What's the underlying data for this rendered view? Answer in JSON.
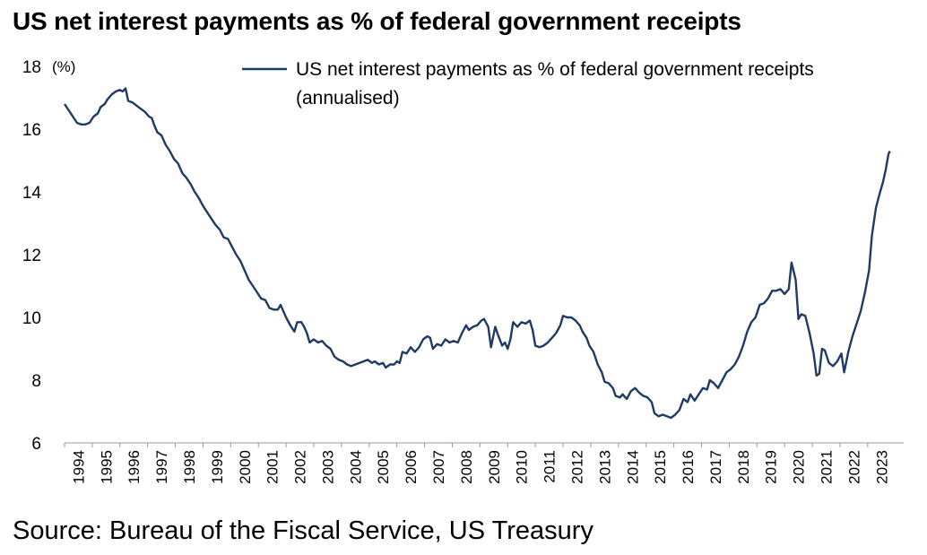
{
  "header": {
    "title": "US net interest payments as % of federal government receipts"
  },
  "footer": {
    "source": "Source: Bureau of the Fiscal Service, US Treasury"
  },
  "chart_data": {
    "type": "line",
    "title": "US net interest payments as % of federal government receipts",
    "y_unit_label": "(%)",
    "ylim": [
      6,
      18
    ],
    "yticks": [
      6,
      8,
      10,
      12,
      14,
      16,
      18
    ],
    "xlim": [
      1994.0,
      2024.3
    ],
    "xticks": [
      "1994",
      "1995",
      "1996",
      "1997",
      "1998",
      "1999",
      "2000",
      "2001",
      "2002",
      "2003",
      "2004",
      "2005",
      "2006",
      "2007",
      "2008",
      "2009",
      "2010",
      "2011",
      "2012",
      "2013",
      "2014",
      "2015",
      "2016",
      "2017",
      "2018",
      "2019",
      "2020",
      "2021",
      "2022",
      "2023"
    ],
    "grid": false,
    "legend": {
      "position": "top-right",
      "lines": [
        "US net interest payments as % of federal government receipts",
        "(annualised)"
      ]
    },
    "series": [
      {
        "name": "US net interest payments as % of federal government receipts (annualised)",
        "color": "#1f3b63",
        "points": [
          [
            1994.0,
            16.8
          ],
          [
            1994.15,
            16.6
          ],
          [
            1994.3,
            16.4
          ],
          [
            1994.45,
            16.2
          ],
          [
            1994.6,
            16.15
          ],
          [
            1994.75,
            16.15
          ],
          [
            1994.9,
            16.2
          ],
          [
            1995.05,
            16.4
          ],
          [
            1995.2,
            16.5
          ],
          [
            1995.3,
            16.7
          ],
          [
            1995.45,
            16.8
          ],
          [
            1995.55,
            16.95
          ],
          [
            1995.7,
            17.1
          ],
          [
            1995.85,
            17.2
          ],
          [
            1996.0,
            17.25
          ],
          [
            1996.1,
            17.2
          ],
          [
            1996.2,
            17.3
          ],
          [
            1996.3,
            16.9
          ],
          [
            1996.45,
            16.85
          ],
          [
            1996.6,
            16.75
          ],
          [
            1996.75,
            16.65
          ],
          [
            1996.9,
            16.55
          ],
          [
            1997.05,
            16.4
          ],
          [
            1997.15,
            16.35
          ],
          [
            1997.25,
            16.1
          ],
          [
            1997.35,
            15.9
          ],
          [
            1997.5,
            15.8
          ],
          [
            1997.65,
            15.5
          ],
          [
            1997.8,
            15.3
          ],
          [
            1997.95,
            15.05
          ],
          [
            1998.1,
            14.9
          ],
          [
            1998.25,
            14.6
          ],
          [
            1998.4,
            14.45
          ],
          [
            1998.55,
            14.25
          ],
          [
            1998.7,
            14.0
          ],
          [
            1998.85,
            13.8
          ],
          [
            1999.0,
            13.55
          ],
          [
            1999.15,
            13.35
          ],
          [
            1999.3,
            13.15
          ],
          [
            1999.45,
            12.95
          ],
          [
            1999.6,
            12.8
          ],
          [
            1999.75,
            12.55
          ],
          [
            1999.9,
            12.5
          ],
          [
            2000.05,
            12.25
          ],
          [
            2000.2,
            12.0
          ],
          [
            2000.35,
            11.8
          ],
          [
            2000.5,
            11.5
          ],
          [
            2000.65,
            11.2
          ],
          [
            2000.8,
            11.0
          ],
          [
            2000.95,
            10.8
          ],
          [
            2001.1,
            10.6
          ],
          [
            2001.25,
            10.55
          ],
          [
            2001.4,
            10.3
          ],
          [
            2001.55,
            10.25
          ],
          [
            2001.7,
            10.25
          ],
          [
            2001.8,
            10.4
          ],
          [
            2001.9,
            10.2
          ],
          [
            2002.0,
            10.0
          ],
          [
            2002.15,
            9.75
          ],
          [
            2002.3,
            9.55
          ],
          [
            2002.4,
            9.85
          ],
          [
            2002.55,
            9.85
          ],
          [
            2002.65,
            9.7
          ],
          [
            2002.75,
            9.5
          ],
          [
            2002.85,
            9.2
          ],
          [
            2003.0,
            9.3
          ],
          [
            2003.15,
            9.2
          ],
          [
            2003.3,
            9.25
          ],
          [
            2003.45,
            9.1
          ],
          [
            2003.6,
            9.0
          ],
          [
            2003.75,
            8.75
          ],
          [
            2003.9,
            8.65
          ],
          [
            2004.05,
            8.6
          ],
          [
            2004.2,
            8.5
          ],
          [
            2004.35,
            8.45
          ],
          [
            2004.5,
            8.5
          ],
          [
            2004.65,
            8.55
          ],
          [
            2004.8,
            8.6
          ],
          [
            2004.95,
            8.65
          ],
          [
            2005.1,
            8.55
          ],
          [
            2005.2,
            8.6
          ],
          [
            2005.35,
            8.5
          ],
          [
            2005.5,
            8.55
          ],
          [
            2005.6,
            8.4
          ],
          [
            2005.75,
            8.5
          ],
          [
            2005.9,
            8.5
          ],
          [
            2006.0,
            8.6
          ],
          [
            2006.1,
            8.55
          ],
          [
            2006.2,
            8.9
          ],
          [
            2006.35,
            8.85
          ],
          [
            2006.5,
            9.05
          ],
          [
            2006.65,
            8.9
          ],
          [
            2006.8,
            9.05
          ],
          [
            2006.95,
            9.3
          ],
          [
            2007.1,
            9.4
          ],
          [
            2007.2,
            9.35
          ],
          [
            2007.3,
            9.0
          ],
          [
            2007.45,
            9.15
          ],
          [
            2007.6,
            9.1
          ],
          [
            2007.75,
            9.3
          ],
          [
            2007.9,
            9.2
          ],
          [
            2008.05,
            9.25
          ],
          [
            2008.2,
            9.2
          ],
          [
            2008.35,
            9.5
          ],
          [
            2008.5,
            9.75
          ],
          [
            2008.6,
            9.6
          ],
          [
            2008.75,
            9.7
          ],
          [
            2008.9,
            9.75
          ],
          [
            2009.05,
            9.9
          ],
          [
            2009.15,
            9.95
          ],
          [
            2009.3,
            9.7
          ],
          [
            2009.4,
            9.05
          ],
          [
            2009.55,
            9.7
          ],
          [
            2009.65,
            9.45
          ],
          [
            2009.8,
            9.1
          ],
          [
            2009.9,
            9.2
          ],
          [
            2010.0,
            9.0
          ],
          [
            2010.1,
            9.3
          ],
          [
            2010.2,
            9.85
          ],
          [
            2010.35,
            9.7
          ],
          [
            2010.5,
            9.85
          ],
          [
            2010.65,
            9.8
          ],
          [
            2010.8,
            9.9
          ],
          [
            2010.9,
            9.6
          ],
          [
            2011.0,
            9.1
          ],
          [
            2011.15,
            9.05
          ],
          [
            2011.3,
            9.1
          ],
          [
            2011.45,
            9.2
          ],
          [
            2011.6,
            9.35
          ],
          [
            2011.75,
            9.5
          ],
          [
            2011.9,
            9.75
          ],
          [
            2012.0,
            10.05
          ],
          [
            2012.15,
            10.0
          ],
          [
            2012.3,
            10.0
          ],
          [
            2012.45,
            9.9
          ],
          [
            2012.6,
            9.75
          ],
          [
            2012.7,
            9.55
          ],
          [
            2012.85,
            9.35
          ],
          [
            2012.95,
            9.1
          ],
          [
            2013.1,
            8.9
          ],
          [
            2013.25,
            8.5
          ],
          [
            2013.4,
            8.25
          ],
          [
            2013.5,
            7.95
          ],
          [
            2013.65,
            7.9
          ],
          [
            2013.8,
            7.75
          ],
          [
            2013.9,
            7.5
          ],
          [
            2014.05,
            7.45
          ],
          [
            2014.15,
            7.55
          ],
          [
            2014.3,
            7.4
          ],
          [
            2014.45,
            7.65
          ],
          [
            2014.6,
            7.75
          ],
          [
            2014.75,
            7.6
          ],
          [
            2014.9,
            7.5
          ],
          [
            2015.05,
            7.45
          ],
          [
            2015.2,
            7.3
          ],
          [
            2015.3,
            6.95
          ],
          [
            2015.45,
            6.85
          ],
          [
            2015.6,
            6.9
          ],
          [
            2015.75,
            6.85
          ],
          [
            2015.9,
            6.8
          ],
          [
            2016.05,
            6.9
          ],
          [
            2016.2,
            7.05
          ],
          [
            2016.35,
            7.4
          ],
          [
            2016.5,
            7.3
          ],
          [
            2016.6,
            7.55
          ],
          [
            2016.75,
            7.35
          ],
          [
            2016.9,
            7.55
          ],
          [
            2017.05,
            7.75
          ],
          [
            2017.2,
            7.7
          ],
          [
            2017.3,
            8.0
          ],
          [
            2017.45,
            7.9
          ],
          [
            2017.6,
            7.75
          ],
          [
            2017.75,
            8.0
          ],
          [
            2017.9,
            8.25
          ],
          [
            2018.05,
            8.35
          ],
          [
            2018.2,
            8.5
          ],
          [
            2018.35,
            8.75
          ],
          [
            2018.5,
            9.1
          ],
          [
            2018.65,
            9.55
          ],
          [
            2018.8,
            9.85
          ],
          [
            2018.95,
            10.0
          ],
          [
            2019.1,
            10.4
          ],
          [
            2019.25,
            10.45
          ],
          [
            2019.4,
            10.6
          ],
          [
            2019.55,
            10.85
          ],
          [
            2019.7,
            10.85
          ],
          [
            2019.85,
            10.9
          ],
          [
            2020.0,
            10.75
          ],
          [
            2020.15,
            10.9
          ],
          [
            2020.25,
            11.75
          ],
          [
            2020.4,
            11.2
          ],
          [
            2020.5,
            9.95
          ],
          [
            2020.6,
            10.1
          ],
          [
            2020.75,
            10.05
          ],
          [
            2020.9,
            9.5
          ],
          [
            2021.05,
            8.85
          ],
          [
            2021.15,
            8.15
          ],
          [
            2021.25,
            8.2
          ],
          [
            2021.35,
            9.0
          ],
          [
            2021.45,
            8.95
          ],
          [
            2021.6,
            8.55
          ],
          [
            2021.75,
            8.45
          ],
          [
            2021.9,
            8.6
          ],
          [
            2022.05,
            8.85
          ],
          [
            2022.15,
            8.25
          ],
          [
            2022.3,
            8.9
          ],
          [
            2022.45,
            9.4
          ],
          [
            2022.6,
            9.8
          ],
          [
            2022.75,
            10.2
          ],
          [
            2022.9,
            10.8
          ],
          [
            2023.05,
            11.5
          ],
          [
            2023.15,
            12.6
          ],
          [
            2023.3,
            13.5
          ],
          [
            2023.45,
            14.0
          ],
          [
            2023.55,
            14.3
          ],
          [
            2023.65,
            14.7
          ],
          [
            2023.75,
            15.2
          ],
          [
            2023.8,
            15.3
          ]
        ]
      }
    ]
  }
}
